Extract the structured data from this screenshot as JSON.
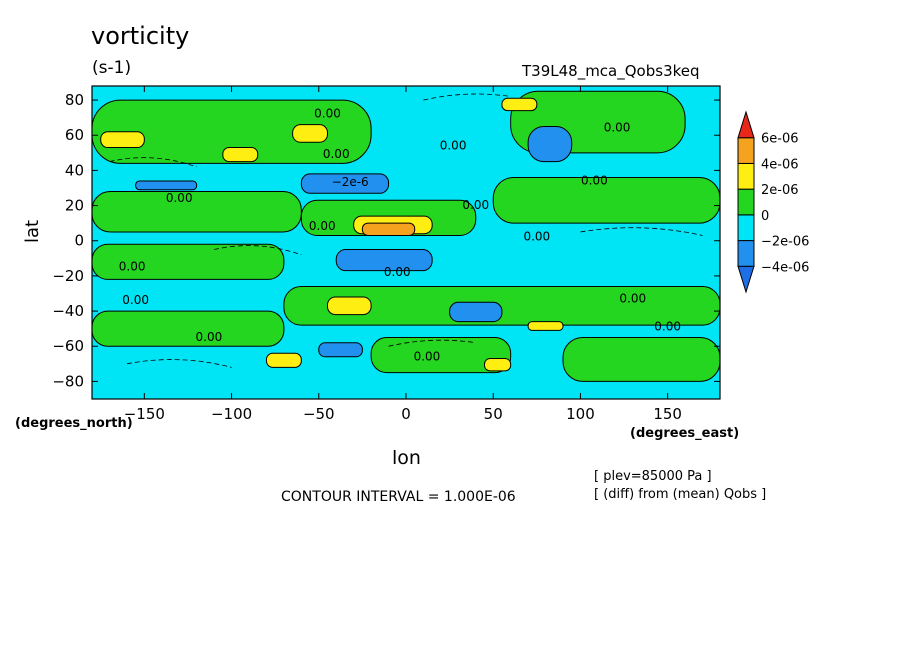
{
  "chart_data": {
    "type": "heatmap",
    "title": "vorticity",
    "units": "(s-1)",
    "run_label": "T39L48_mca_Qobs3keq",
    "xlabel": "lon",
    "ylabel": "lat",
    "x_unit": "(degrees_east)",
    "y_unit": "(degrees_north)",
    "xlim": [
      -180,
      180
    ],
    "ylim": [
      -90,
      88
    ],
    "x_ticks": [
      -150,
      -100,
      -50,
      0,
      50,
      100,
      150
    ],
    "y_ticks": [
      -80,
      -60,
      -40,
      -20,
      0,
      20,
      40,
      60,
      80
    ],
    "contour_interval_text": "CONTOUR INTERVAL = 1.000E-06",
    "notes": [
      "[ plev=85000 Pa ]",
      "[ (diff) from (mean) Qobs ]"
    ],
    "colorbar": {
      "levels": [
        {
          "label": "6e-06",
          "color": "#e8271b"
        },
        {
          "label": "4e-06",
          "color": "#f5a31e"
        },
        {
          "label": "2e-06",
          "color": "#ffee12"
        },
        {
          "label": "0",
          "color": "#24d61f"
        },
        {
          "label": "−2e-06",
          "color": "#00e5f5"
        },
        {
          "label": "−4e-06",
          "color": "#2290ee"
        }
      ],
      "bands": [
        "#1e6fe6",
        "#2290ee",
        "#00e5f5",
        "#24d61f",
        "#ffee12",
        "#f5a31e",
        "#e8271b"
      ]
    },
    "contour_labels": [
      {
        "text": "0.00",
        "lon": -45,
        "lat": 70
      },
      {
        "text": "0.00",
        "lon": -40,
        "lat": 47
      },
      {
        "text": "−2e-6",
        "lon": -32,
        "lat": 31
      },
      {
        "text": "0.00",
        "lon": 27,
        "lat": 52
      },
      {
        "text": "0.00",
        "lon": 121,
        "lat": 62
      },
      {
        "text": "0.00",
        "lon": 108,
        "lat": 32
      },
      {
        "text": "0.00",
        "lon": -130,
        "lat": 22
      },
      {
        "text": "0.00",
        "lon": 40,
        "lat": 18
      },
      {
        "text": "0.00",
        "lon": -48,
        "lat": 6
      },
      {
        "text": "0.00",
        "lon": 75,
        "lat": 0
      },
      {
        "text": "0.00",
        "lon": -157,
        "lat": -17
      },
      {
        "text": "0.00",
        "lon": -5,
        "lat": -20
      },
      {
        "text": "0.00",
        "lon": -155,
        "lat": -36
      },
      {
        "text": "0.00",
        "lon": 130,
        "lat": -35
      },
      {
        "text": "0.00",
        "lon": 150,
        "lat": -51
      },
      {
        "text": "0.00",
        "lon": -113,
        "lat": -57
      },
      {
        "text": "0.00",
        "lon": 12,
        "lat": -68
      }
    ],
    "regions": [
      {
        "fill": "#00e5f5",
        "lon": [
          -180,
          180
        ],
        "lat": [
          -90,
          88
        ]
      },
      {
        "fill": "#24d61f",
        "lon": [
          -180,
          -20
        ],
        "lat": [
          44,
          80
        ]
      },
      {
        "fill": "#24d61f",
        "lon": [
          60,
          160
        ],
        "lat": [
          50,
          85
        ]
      },
      {
        "fill": "#24d61f",
        "lon": [
          -180,
          -60
        ],
        "lat": [
          5,
          28
        ]
      },
      {
        "fill": "#24d61f",
        "lon": [
          -60,
          40
        ],
        "lat": [
          3,
          23
        ]
      },
      {
        "fill": "#24d61f",
        "lon": [
          50,
          180
        ],
        "lat": [
          10,
          36
        ]
      },
      {
        "fill": "#24d61f",
        "lon": [
          -180,
          -70
        ],
        "lat": [
          -22,
          -2
        ]
      },
      {
        "fill": "#24d61f",
        "lon": [
          -70,
          180
        ],
        "lat": [
          -48,
          -26
        ]
      },
      {
        "fill": "#24d61f",
        "lon": [
          -180,
          -70
        ],
        "lat": [
          -60,
          -40
        ]
      },
      {
        "fill": "#24d61f",
        "lon": [
          -20,
          60
        ],
        "lat": [
          -75,
          -55
        ]
      },
      {
        "fill": "#24d61f",
        "lon": [
          90,
          180
        ],
        "lat": [
          -80,
          -55
        ]
      },
      {
        "fill": "#2290ee",
        "lon": [
          -60,
          -10
        ],
        "lat": [
          27,
          38
        ]
      },
      {
        "fill": "#2290ee",
        "lon": [
          70,
          95
        ],
        "lat": [
          45,
          65
        ]
      },
      {
        "fill": "#2290ee",
        "lon": [
          -155,
          -120
        ],
        "lat": [
          29,
          34
        ]
      },
      {
        "fill": "#2290ee",
        "lon": [
          -40,
          15
        ],
        "lat": [
          -17,
          -5
        ]
      },
      {
        "fill": "#2290ee",
        "lon": [
          25,
          55
        ],
        "lat": [
          -46,
          -35
        ]
      },
      {
        "fill": "#2290ee",
        "lon": [
          -50,
          -25
        ],
        "lat": [
          -66,
          -58
        ]
      },
      {
        "fill": "#ffee12",
        "lon": [
          -175,
          -150
        ],
        "lat": [
          53,
          62
        ]
      },
      {
        "fill": "#ffee12",
        "lon": [
          -105,
          -85
        ],
        "lat": [
          45,
          53
        ]
      },
      {
        "fill": "#ffee12",
        "lon": [
          -65,
          -45
        ],
        "lat": [
          56,
          66
        ]
      },
      {
        "fill": "#ffee12",
        "lon": [
          55,
          75
        ],
        "lat": [
          74,
          81
        ]
      },
      {
        "fill": "#ffee12",
        "lon": [
          -30,
          15
        ],
        "lat": [
          4,
          14
        ]
      },
      {
        "fill": "#f5a31e",
        "lon": [
          -25,
          5
        ],
        "lat": [
          3,
          10
        ]
      },
      {
        "fill": "#ffee12",
        "lon": [
          -45,
          -20
        ],
        "lat": [
          -42,
          -32
        ]
      },
      {
        "fill": "#ffee12",
        "lon": [
          -80,
          -60
        ],
        "lat": [
          -72,
          -64
        ]
      },
      {
        "fill": "#ffee12",
        "lon": [
          45,
          60
        ],
        "lat": [
          -74,
          -67
        ]
      },
      {
        "fill": "#ffee12",
        "lon": [
          70,
          90
        ],
        "lat": [
          -51,
          -46
        ]
      }
    ]
  }
}
